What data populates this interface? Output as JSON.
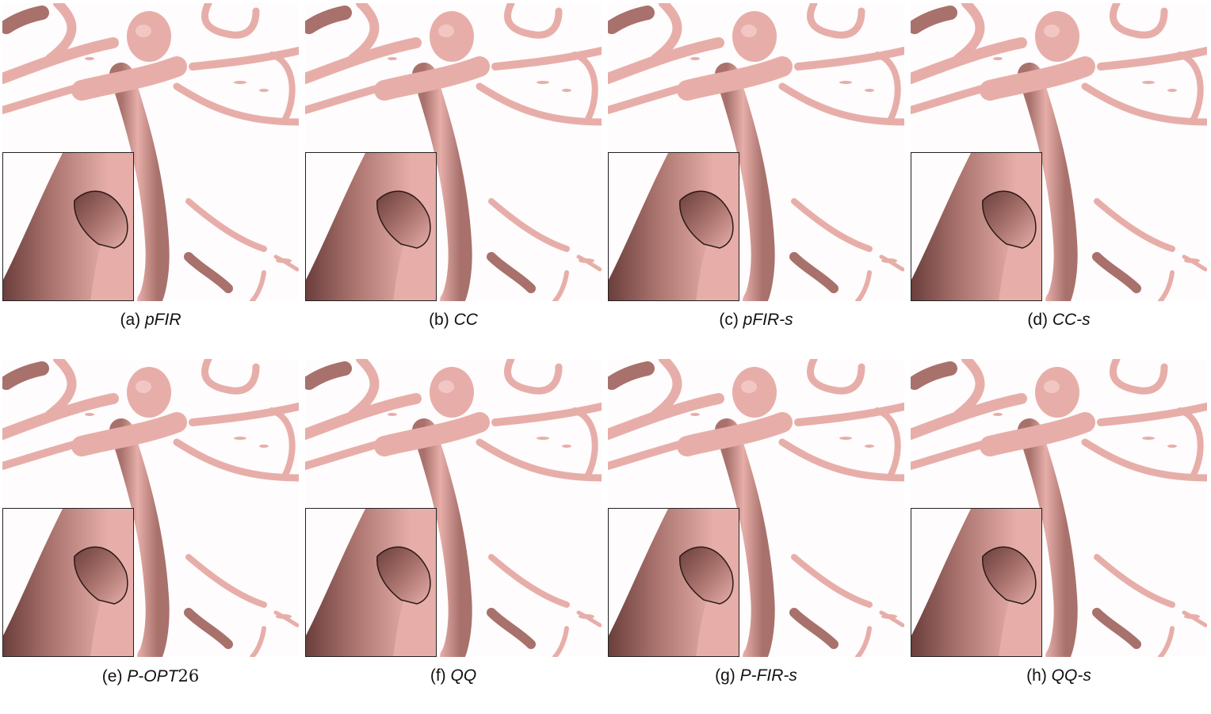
{
  "panels": [
    {
      "prefix": "(a)",
      "method": "pFIR",
      "digits": ""
    },
    {
      "prefix": "(b)",
      "method": "CC",
      "digits": ""
    },
    {
      "prefix": "(c)",
      "method": "pFIR-s",
      "digits": ""
    },
    {
      "prefix": "(d)",
      "method": "CC-s",
      "digits": ""
    },
    {
      "prefix": "(e)",
      "method": "P-OPT",
      "digits": "26"
    },
    {
      "prefix": "(f)",
      "method": "QQ",
      "digits": ""
    },
    {
      "prefix": "(g)",
      "method": "P-FIR-s",
      "digits": ""
    },
    {
      "prefix": "(h)",
      "method": "QQ-s",
      "digits": ""
    }
  ],
  "colors": {
    "vessel": "#e7aea9",
    "vessel_dark": "#6b3f3c",
    "vessel_shadow": "#a8716c",
    "background": "#fefcfc"
  }
}
